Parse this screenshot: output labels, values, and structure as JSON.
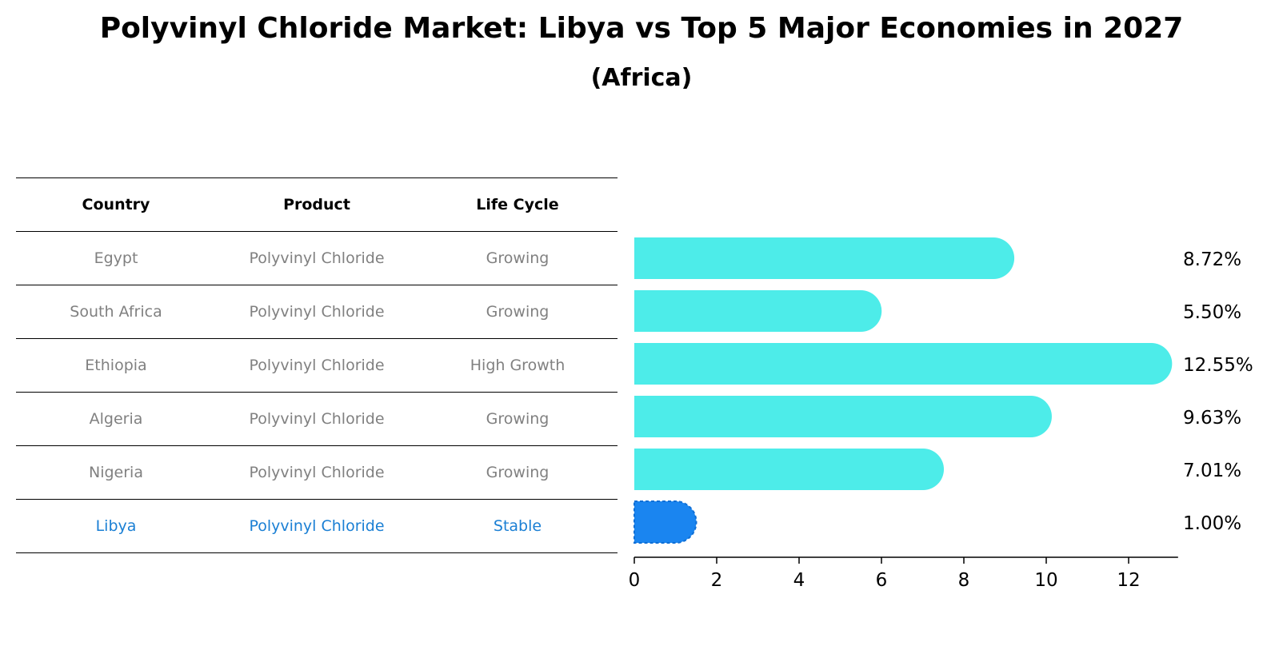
{
  "title": "Polyvinyl Chloride Market: Libya vs Top 5 Major Economies in 2027",
  "subtitle": "(Africa)",
  "table": {
    "headers": [
      "Country",
      "Product",
      "Life Cycle"
    ],
    "rows": [
      {
        "country": "Egypt",
        "product": "Polyvinyl Chloride",
        "life_cycle": "Growing"
      },
      {
        "country": "South Africa",
        "product": "Polyvinyl Chloride",
        "life_cycle": "Growing"
      },
      {
        "country": "Ethiopia",
        "product": "Polyvinyl Chloride",
        "life_cycle": "High Growth"
      },
      {
        "country": "Algeria",
        "product": "Polyvinyl Chloride",
        "life_cycle": "Growing"
      },
      {
        "country": "Nigeria",
        "product": "Polyvinyl Chloride",
        "life_cycle": "Growing"
      },
      {
        "country": "Libya",
        "product": "Polyvinyl Chloride",
        "life_cycle": "Stable"
      }
    ]
  },
  "colors": {
    "bar": "#4dece9",
    "highlight": "#1a85f0",
    "highlight_text": "#1a7fd4",
    "muted_text": "#808080"
  },
  "chart_data": {
    "type": "bar",
    "orientation": "horizontal",
    "categories": [
      "Egypt",
      "South Africa",
      "Ethiopia",
      "Algeria",
      "Nigeria",
      "Libya"
    ],
    "values": [
      8.72,
      5.5,
      12.55,
      9.63,
      7.01,
      1.0
    ],
    "value_labels": [
      "8.72%",
      "5.50%",
      "12.55%",
      "9.63%",
      "7.01%",
      "1.00%"
    ],
    "highlight": "Libya",
    "xlim": [
      0,
      13.2
    ],
    "xticks": [
      0,
      2,
      4,
      6,
      8,
      10,
      12
    ],
    "xlabel": "",
    "ylabel": "",
    "grid": false
  }
}
